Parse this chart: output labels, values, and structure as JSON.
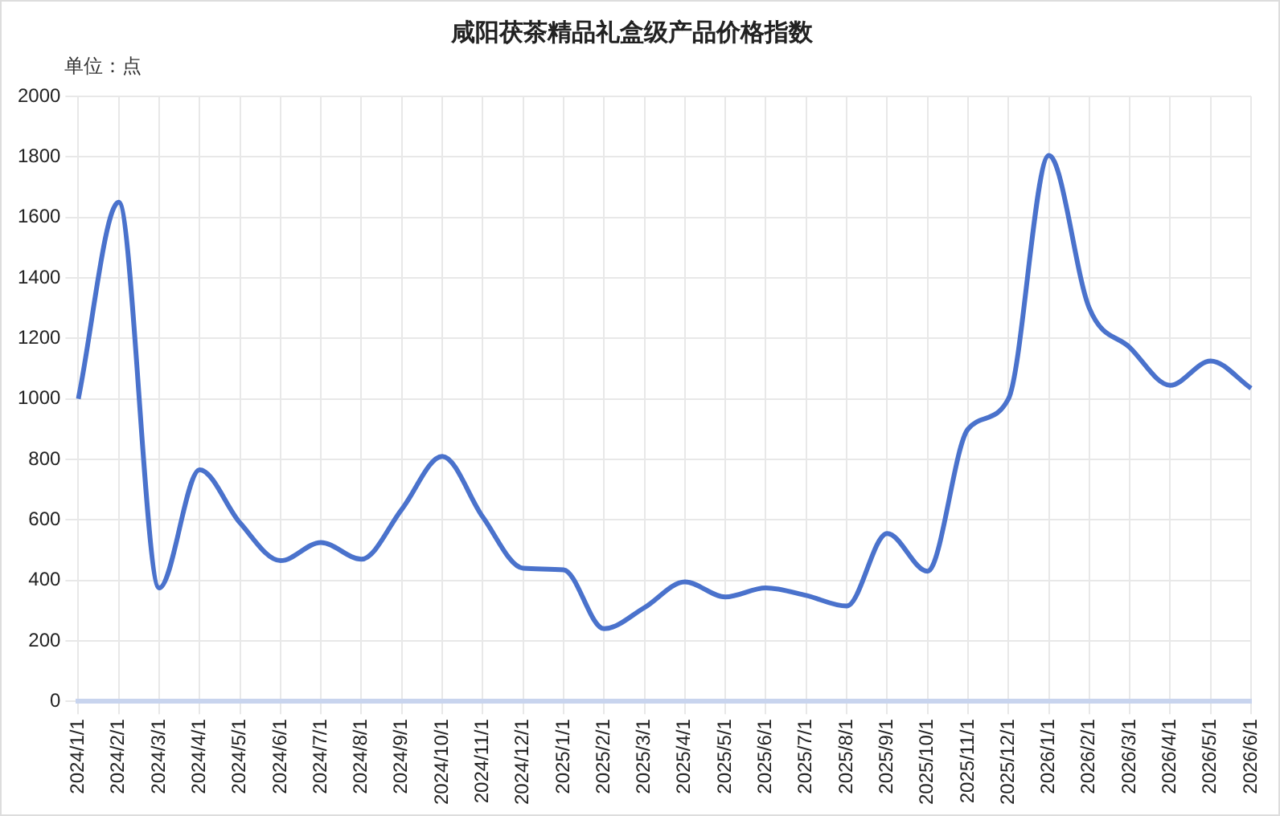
{
  "chart_data": {
    "type": "line",
    "title": "咸阳茯茶精品礼盒级产品价格指数",
    "ylabel": "单位：点",
    "categories": [
      "2024/1/1",
      "2024/2/1",
      "2024/3/1",
      "2024/4/1",
      "2024/5/1",
      "2024/6/1",
      "2024/7/1",
      "2024/8/1",
      "2024/9/1",
      "2024/10/1",
      "2024/11/1",
      "2024/12/1",
      "2025/1/1",
      "2025/2/1",
      "2025/3/1",
      "2025/4/1",
      "2025/5/1",
      "2025/6/1",
      "2025/7/1",
      "2025/8/1",
      "2025/9/1",
      "2025/10/1",
      "2025/11/1",
      "2025/12/1",
      "2026/1/1",
      "2026/2/1",
      "2026/3/1",
      "2026/4/1",
      "2026/5/1",
      "2026/6/1"
    ],
    "series": [
      {
        "color": "#4a72cc",
        "values": [
          1000,
          1650,
          375,
          765,
          590,
          465,
          525,
          470,
          635,
          810,
          610,
          440,
          435,
          240,
          310,
          395,
          345,
          375,
          350,
          315,
          555,
          430,
          900,
          1000,
          1805,
          1300,
          1170,
          1045,
          1125,
          1035
        ]
      }
    ],
    "ylim": [
      0,
      2000
    ],
    "yticks": [
      0,
      200,
      400,
      600,
      800,
      1000,
      1200,
      1400,
      1600,
      1800,
      2000
    ],
    "grid": true,
    "legend": false,
    "marker": "none",
    "line_style": "solid"
  }
}
